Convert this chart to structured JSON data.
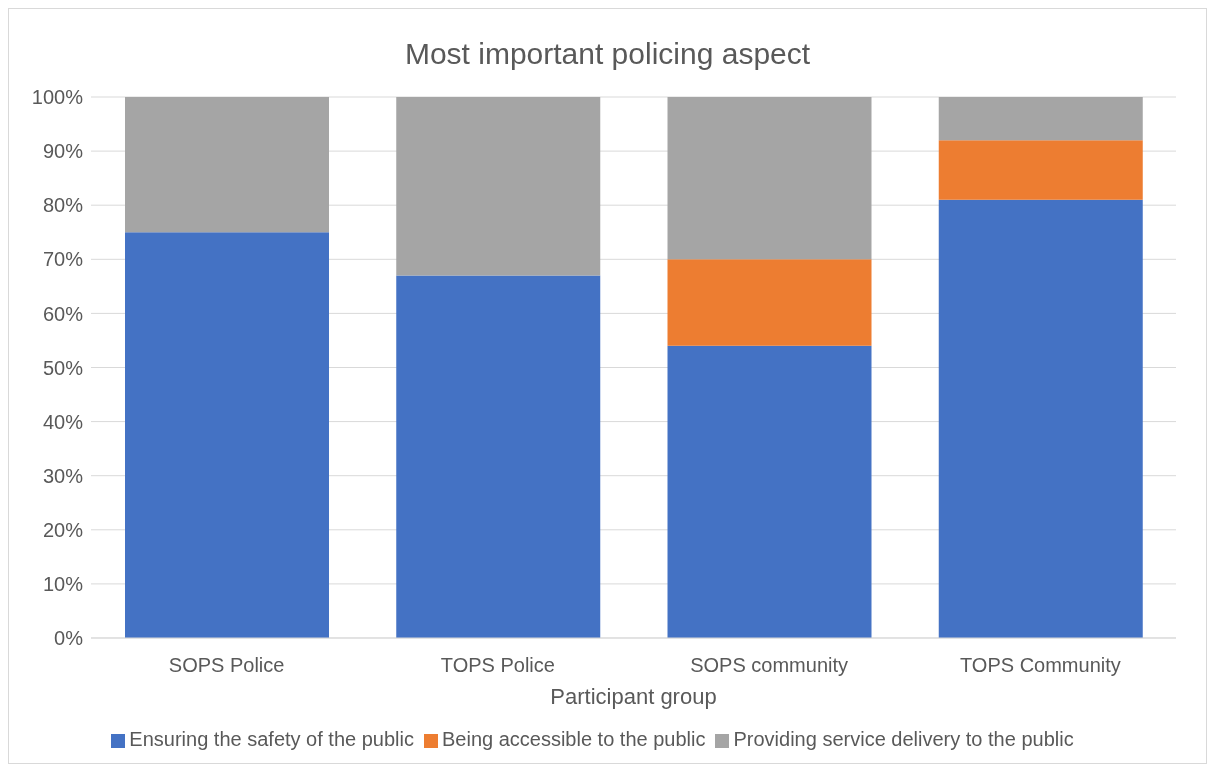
{
  "chart_data": {
    "type": "bar",
    "title": "Most important policing aspect",
    "xlabel": "Participant group",
    "categories": [
      "SOPS Police",
      "TOPS Police",
      "SOPS community",
      "TOPS Community"
    ],
    "stacked": true,
    "series": [
      {
        "name": "Ensuring the safety of the public",
        "color": "#4472c4",
        "values": [
          75,
          67,
          54,
          81
        ]
      },
      {
        "name": "Being accessible to the public",
        "color": "#ed7d31",
        "values": [
          0,
          0,
          16,
          11
        ]
      },
      {
        "name": "Providing service delivery to the public",
        "color": "#a5a5a5",
        "values": [
          25,
          33,
          30,
          8
        ]
      }
    ],
    "ylim": [
      0,
      100
    ],
    "yticks": [
      {
        "value": 0,
        "label": "0%"
      },
      {
        "value": 10,
        "label": "10%"
      },
      {
        "value": 20,
        "label": "20%"
      },
      {
        "value": 30,
        "label": "30%"
      },
      {
        "value": 40,
        "label": "40%"
      },
      {
        "value": 50,
        "label": "50%"
      },
      {
        "value": 60,
        "label": "60%"
      },
      {
        "value": 70,
        "label": "70%"
      },
      {
        "value": 80,
        "label": "80%"
      },
      {
        "value": 90,
        "label": "90%"
      },
      {
        "value": 100,
        "label": "100%"
      }
    ],
    "grid": "y",
    "legend": "bottom"
  }
}
